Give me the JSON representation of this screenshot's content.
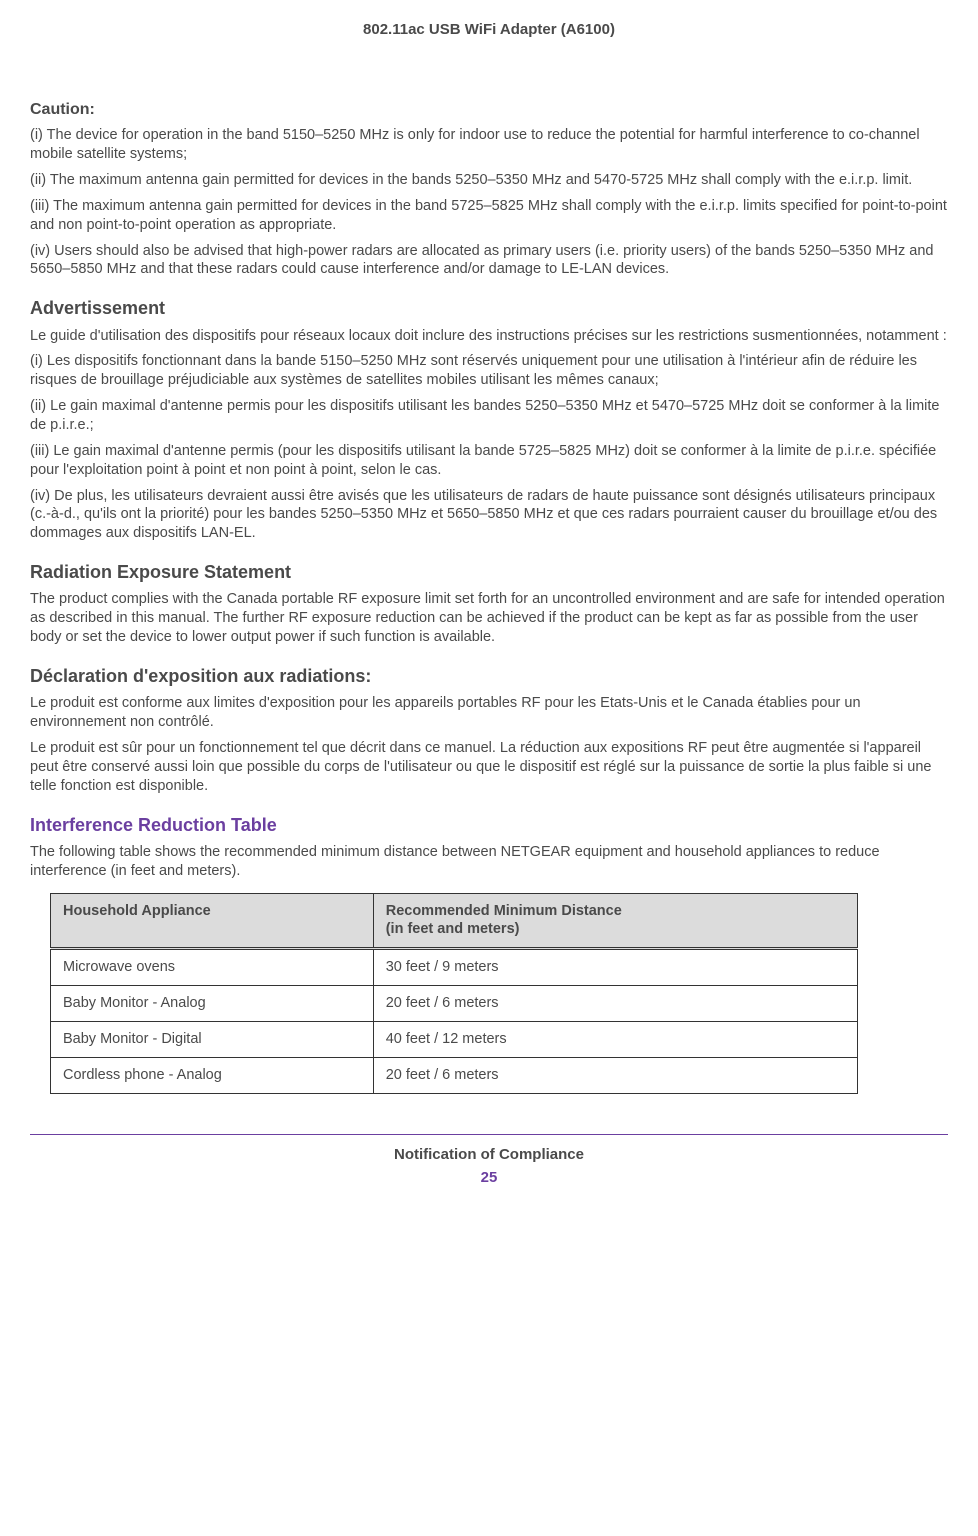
{
  "header": {
    "title": "802.11ac USB WiFi Adapter (A6100)"
  },
  "sections": {
    "caution": {
      "title": "Caution:",
      "p1": "(i) The device for operation in the band 5150–5250 MHz is only for indoor use to reduce the potential for harmful interference to co-channel mobile satellite systems;",
      "p2": "(ii) The maximum antenna gain permitted for devices in the bands 5250–5350 MHz and 5470-5725 MHz shall comply with the e.i.r.p. limit.",
      "p3": "(iii) The maximum antenna gain permitted for devices in the band 5725–5825 MHz shall comply with the e.i.r.p. limits specified for point-to-point and non point-to-point operation as appropriate.",
      "p4": "(iv) Users should also be advised that high-power radars are allocated as primary users (i.e. priority users) of the bands 5250–5350 MHz and 5650–5850 MHz and that these radars could cause interference and/or damage to LE-LAN devices."
    },
    "advertissement": {
      "title": "Advertissement",
      "p1": "Le guide d'utilisation des dispositifs pour réseaux locaux doit inclure des instructions précises sur les restrictions susmentionnées, notamment :",
      "p2": "(i) Les dispositifs fonctionnant dans la bande 5150–5250 MHz sont réservés uniquement pour une utilisation à l'intérieur afin de réduire les risques de brouillage préjudiciable aux systèmes de satellites mobiles utilisant les mêmes canaux;",
      "p3": "(ii) Le gain maximal d'antenne permis pour les dispositifs utilisant les bandes 5250–5350 MHz et 5470–5725 MHz doit se conformer à la limite de p.i.r.e.;",
      "p4": "(iii) Le gain maximal d'antenne permis (pour les dispositifs utilisant la bande 5725–5825 MHz) doit se conformer à la limite de p.i.r.e. spécifiée pour l'exploitation point à point et non point à point, selon le cas.",
      "p5": "(iv) De plus, les utilisateurs devraient aussi être avisés que les utilisateurs de radars de haute puissance sont désignés utilisateurs principaux (c.-à-d., qu'ils ont la priorité) pour les bandes 5250–5350 MHz et 5650–5850 MHz et que ces radars pourraient causer du brouillage et/ou des dommages aux dispositifs LAN-EL."
    },
    "radiation": {
      "title": "Radiation Exposure Statement",
      "p1": "The product complies with the Canada portable RF exposure limit set forth for an uncontrolled environment and are safe for intended operation as described in this manual. The further RF exposure reduction can be achieved if the product can be kept as far as possible from the user body or set the device to lower output power if such function is available."
    },
    "declaration": {
      "title": "Déclaration d'exposition aux radiations:",
      "p1": "Le produit est conforme aux limites d'exposition pour les appareils portables RF pour les Etats-Unis et le Canada établies pour un environnement non contrôlé.",
      "p2": "Le produit est sûr pour un fonctionnement tel que décrit dans ce manuel. La réduction aux expositions RF peut être augmentée si l'appareil peut être conservé aussi loin que possible du corps de l'utilisateur ou que le dispositif est réglé sur la puissance de sortie la plus faible si une telle fonction est disponible."
    },
    "interference": {
      "title": "Interference Reduction Table",
      "intro": "The following table shows the recommended minimum distance between NETGEAR equipment and household appliances to reduce interference (in feet and meters)."
    }
  },
  "table": {
    "header_col1": "Household Appliance",
    "header_col2_line1": "Recommended Minimum Distance",
    "header_col2_line2": "(in feet and meters)",
    "rows": [
      {
        "appliance": "Microwave ovens",
        "distance": "30 feet / 9 meters"
      },
      {
        "appliance": "Baby Monitor - Analog",
        "distance": "20 feet / 6 meters"
      },
      {
        "appliance": "Baby Monitor - Digital",
        "distance": "40 feet / 12 meters"
      },
      {
        "appliance": "Cordless phone - Analog",
        "distance": "20 feet / 6 meters"
      }
    ]
  },
  "footer": {
    "text": "Notification of Compliance",
    "page": "25"
  },
  "styling": {
    "text_color": "#4a4a4a",
    "purple_color": "#6b3fa0",
    "table_header_bg": "#dcdcdc",
    "table_border": "#333333",
    "body_bg": "#ffffff",
    "body_font_size": 14.5,
    "heading_font_size": 18
  }
}
